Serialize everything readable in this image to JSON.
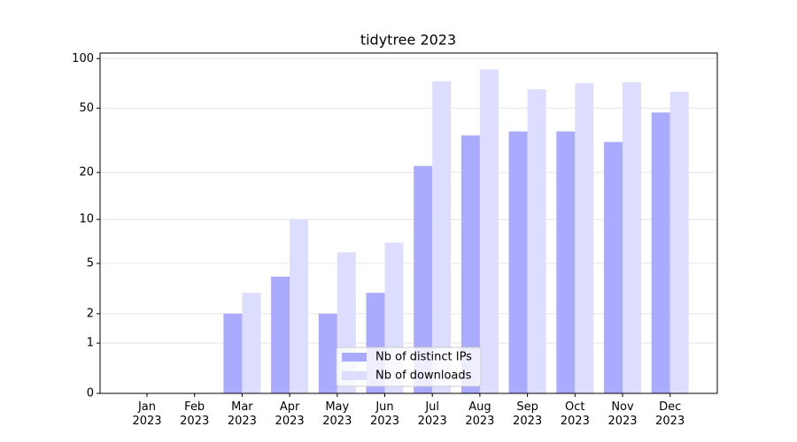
{
  "chart_data": {
    "type": "bar",
    "title": "tidytree 2023",
    "categories": [
      "Jan\n2023",
      "Feb\n2023",
      "Mar\n2023",
      "Apr\n2023",
      "May\n2023",
      "Jun\n2023",
      "Jul\n2023",
      "Aug\n2023",
      "Sep\n2023",
      "Oct\n2023",
      "Nov\n2023",
      "Dec\n2023"
    ],
    "series": [
      {
        "name": "Nb of distinct IPs",
        "color": "#aaaaff",
        "values": [
          0,
          0,
          2,
          4,
          2,
          3,
          22,
          34,
          36,
          36,
          31,
          47
        ]
      },
      {
        "name": "Nb of downloads",
        "color": "#ddddff",
        "values": [
          0,
          0,
          3,
          10,
          6,
          7,
          73,
          86,
          65,
          71,
          72,
          63
        ]
      }
    ],
    "yscale": "log1p",
    "ylim": [
      0,
      108
    ],
    "yticks": [
      0,
      1,
      2,
      5,
      10,
      20,
      50,
      100
    ],
    "grid": true,
    "legend": "lower center"
  }
}
